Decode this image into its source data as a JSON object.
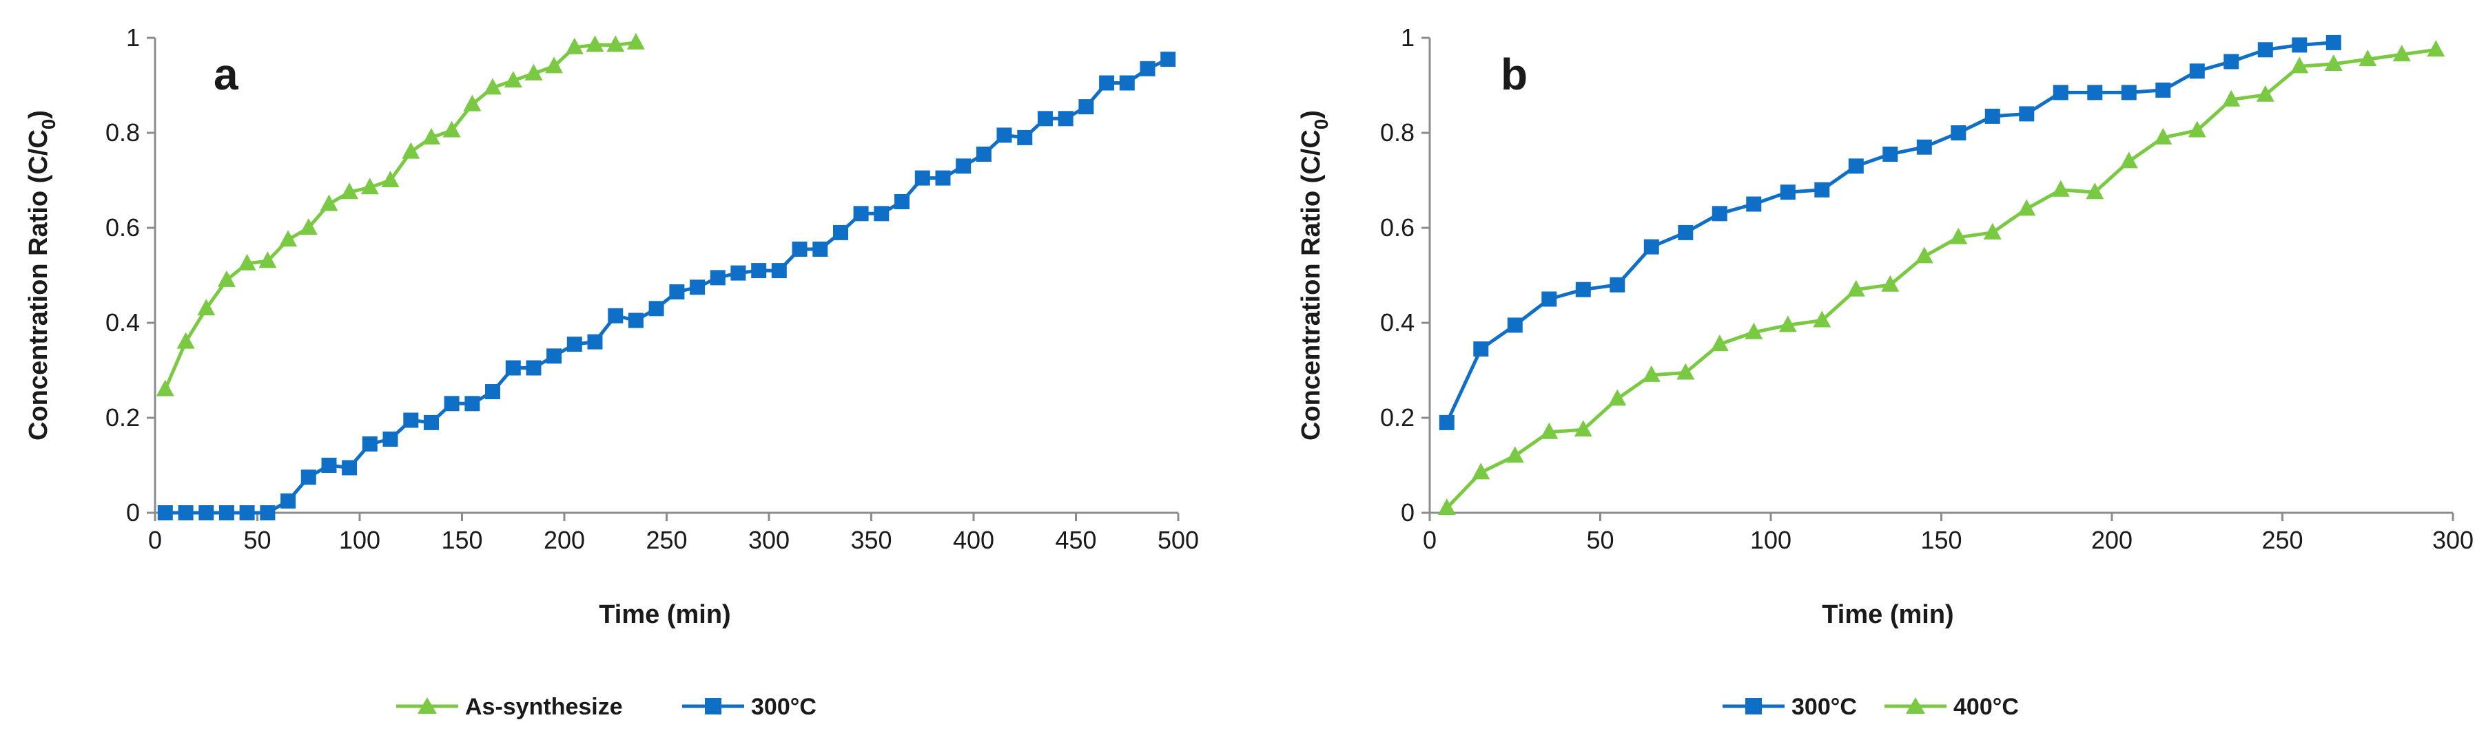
{
  "chart_data": [
    {
      "type": "line",
      "panel_label": "a",
      "xlabel": "Time (min)",
      "ylabel": "Concentration Ratio (C/C0)",
      "ylabel_parts": {
        "main": "Concentration Ratio (C/C",
        "sub": "0",
        "close": ")"
      },
      "xlim": [
        0,
        500
      ],
      "ylim": [
        0,
        1
      ],
      "xticks": [
        "0",
        "50",
        "100",
        "150",
        "200",
        "250",
        "300",
        "350",
        "400",
        "450",
        "500"
      ],
      "yticks": [
        "0",
        "0.2",
        "0.4",
        "0.6",
        "0.8",
        "1"
      ],
      "grid": false,
      "legend": "bottom-center",
      "series": [
        {
          "name": "As-synthesize",
          "color": "#7ac943",
          "marker": "triangle",
          "x": [
            5,
            15,
            25,
            35,
            45,
            55,
            65,
            75,
            85,
            95,
            105,
            115,
            125,
            135,
            145,
            155,
            165,
            175,
            185,
            195,
            205,
            215,
            225,
            235
          ],
          "y": [
            0.26,
            0.36,
            0.43,
            0.49,
            0.525,
            0.53,
            0.575,
            0.6,
            0.65,
            0.675,
            0.685,
            0.7,
            0.76,
            0.79,
            0.805,
            0.86,
            0.895,
            0.91,
            0.925,
            0.94,
            0.98,
            0.985,
            0.985,
            0.99
          ]
        },
        {
          "name": "300°C",
          "color": "#0f6fc6",
          "marker": "square",
          "x": [
            5,
            15,
            25,
            35,
            45,
            55,
            65,
            75,
            85,
            95,
            105,
            115,
            125,
            135,
            145,
            155,
            165,
            175,
            185,
            195,
            205,
            215,
            225,
            235,
            245,
            255,
            265,
            275,
            285,
            295,
            305,
            315,
            325,
            335,
            345,
            355,
            365,
            375,
            385,
            395,
            405,
            415,
            425,
            435,
            445,
            455,
            465,
            475,
            485,
            495
          ],
          "y": [
            0,
            0,
            0,
            0,
            0,
            0,
            0.025,
            0.075,
            0.1,
            0.095,
            0.145,
            0.155,
            0.195,
            0.19,
            0.23,
            0.23,
            0.255,
            0.305,
            0.305,
            0.33,
            0.355,
            0.36,
            0.415,
            0.405,
            0.43,
            0.465,
            0.475,
            0.495,
            0.505,
            0.51,
            0.51,
            0.555,
            0.555,
            0.59,
            0.63,
            0.63,
            0.655,
            0.705,
            0.705,
            0.73,
            0.755,
            0.795,
            0.79,
            0.83,
            0.83,
            0.855,
            0.905,
            0.905,
            0.935,
            0.955
          ]
        }
      ]
    },
    {
      "type": "line",
      "panel_label": "b",
      "xlabel": "Time (min)",
      "ylabel": "Concentration Ratio (C/C0)",
      "ylabel_parts": {
        "main": "Concentration Ratio (C/C",
        "sub": "0",
        "close": ")"
      },
      "xlim": [
        0,
        300
      ],
      "ylim": [
        0,
        1
      ],
      "xticks": [
        "0",
        "50",
        "100",
        "150",
        "200",
        "250",
        "300"
      ],
      "yticks": [
        "0",
        "0.2",
        "0.4",
        "0.6",
        "0.8",
        "1"
      ],
      "grid": false,
      "legend": "bottom-center",
      "series": [
        {
          "name": "300°C",
          "color": "#0f6fc6",
          "marker": "square",
          "x": [
            5,
            15,
            25,
            35,
            45,
            55,
            65,
            75,
            85,
            95,
            105,
            115,
            125,
            135,
            145,
            155,
            165,
            175,
            185,
            195,
            205,
            215,
            225,
            235,
            245,
            255,
            265
          ],
          "y": [
            0.19,
            0.345,
            0.395,
            0.45,
            0.47,
            0.48,
            0.56,
            0.59,
            0.63,
            0.65,
            0.675,
            0.68,
            0.73,
            0.755,
            0.77,
            0.8,
            0.835,
            0.84,
            0.885,
            0.885,
            0.885,
            0.89,
            0.93,
            0.95,
            0.975,
            0.985,
            0.99
          ]
        },
        {
          "name": "400°C",
          "color": "#7ac943",
          "marker": "triangle",
          "x": [
            5,
            15,
            25,
            35,
            45,
            55,
            65,
            75,
            85,
            95,
            105,
            115,
            125,
            135,
            145,
            155,
            165,
            175,
            185,
            195,
            205,
            215,
            225,
            235,
            245,
            255,
            265,
            275,
            285,
            295
          ],
          "y": [
            0.01,
            0.085,
            0.12,
            0.17,
            0.175,
            0.24,
            0.29,
            0.295,
            0.355,
            0.38,
            0.395,
            0.405,
            0.47,
            0.48,
            0.54,
            0.58,
            0.59,
            0.64,
            0.68,
            0.675,
            0.74,
            0.79,
            0.805,
            0.87,
            0.88,
            0.94,
            0.945,
            0.955,
            0.965,
            0.975
          ]
        }
      ]
    }
  ]
}
